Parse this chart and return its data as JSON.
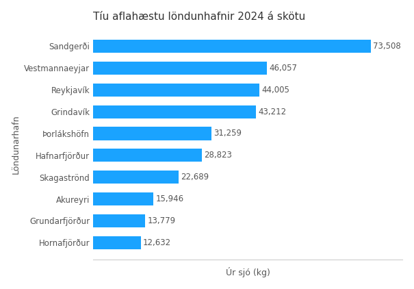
{
  "title": "Tíu aflahæstu löndunhafnir 2024 á skötu",
  "ylabel": "Löndunarhafn",
  "xlabel": "Úr sjó (kg)",
  "categories": [
    "Hornafjörður",
    "Grundarfjörður",
    "Akureyri",
    "Skagaströnd",
    "Hafnarfjörður",
    "Þorlákshöfn",
    "Grindavík",
    "Reykjavík",
    "Vestmannaeyjar",
    "Sandgerði"
  ],
  "values": [
    12632,
    13779,
    15946,
    22689,
    28823,
    31259,
    43212,
    44005,
    46057,
    73508
  ],
  "bar_color": "#1aa3ff",
  "value_labels": [
    "12,632",
    "13,779",
    "15,946",
    "22,689",
    "28,823",
    "31,259",
    "43,212",
    "44,005",
    "46,057",
    "73,508"
  ],
  "title_fontsize": 11,
  "label_fontsize": 8.5,
  "axis_label_fontsize": 9,
  "text_color": "#555555",
  "background_color": "#ffffff",
  "xlim": [
    0,
    82000
  ]
}
